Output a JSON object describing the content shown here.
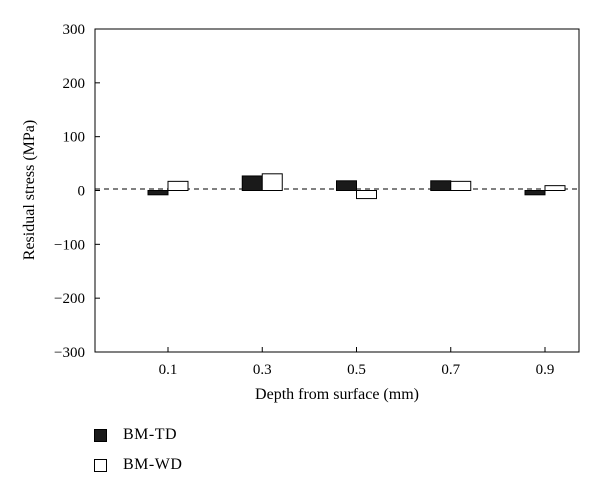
{
  "chart_data": {
    "type": "bar",
    "categories": [
      "0.1",
      "0.3",
      "0.5",
      "0.7",
      "0.9"
    ],
    "series": [
      {
        "name": "BM-TD",
        "values": [
          -8,
          27,
          18,
          18,
          -8
        ],
        "color": "#1a1a1a"
      },
      {
        "name": "BM-WD",
        "values": [
          17,
          31,
          -15,
          17,
          9
        ],
        "color": "#ffffff"
      }
    ],
    "xlabel": "Depth from surface (mm)",
    "ylabel": "Residual stress (MPa)",
    "ylim": [
      -300,
      300
    ],
    "yticks": [
      "300",
      "200",
      "100",
      "0",
      "−100",
      "−200",
      "−300"
    ],
    "ytick_values": [
      300,
      200,
      100,
      0,
      -100,
      -200,
      -300
    ],
    "zero_line": "dashed",
    "grid": false,
    "legend_position": "below-left"
  }
}
